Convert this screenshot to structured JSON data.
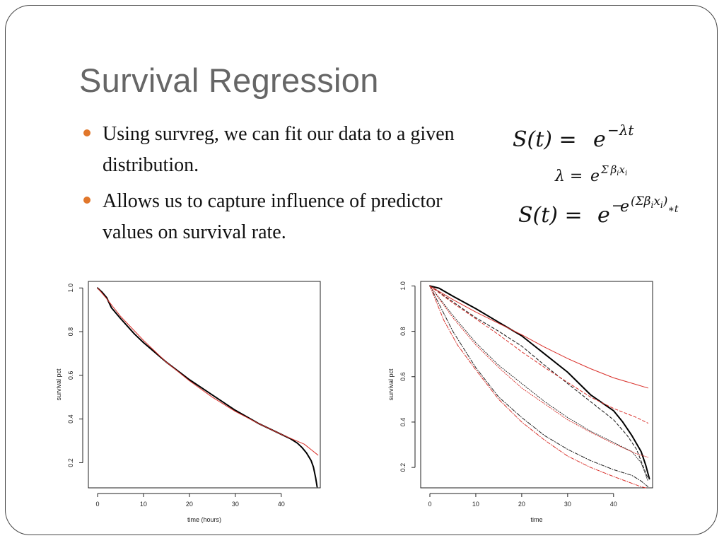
{
  "slide": {
    "title": "Survival Regression",
    "bullets": [
      "Using survreg, we can fit our data to a given distribution.",
      "Allows us to capture influence of predictor values on survival rate."
    ],
    "accent_color": "#e1772b",
    "formulas": {
      "f1_lhs": "S(t) =",
      "f1_base": "e",
      "f1_exp": "−λt",
      "f2_lhs": "λ =",
      "f2_base": "e",
      "f2_exp_sigma": "Σ",
      "f2_exp_beta": "β",
      "f2_exp_i1": "i",
      "f2_exp_x": "x",
      "f2_exp_i2": "i",
      "f3_lhs": "S(t) =",
      "f3_base": "e",
      "f3_minus": "−",
      "f3_inner_e": "e",
      "f3_inner_exp": "(Σβ",
      "f3_inner_i1": "i",
      "f3_inner_x": "x",
      "f3_inner_i2": "i",
      "f3_inner_close": ")",
      "f3_star_t": "∗t"
    }
  },
  "chart_data": [
    {
      "type": "line",
      "xlabel": "time (hours)",
      "ylabel": "survival pct",
      "xlim": [
        -2,
        48.5
      ],
      "ylim": [
        0.085,
        1.03
      ],
      "xticks": [
        0,
        10,
        20,
        30,
        40
      ],
      "yticks": [
        0.2,
        0.4,
        0.6,
        0.8,
        1.0
      ],
      "xtick_labels": [
        "0",
        "10",
        "20",
        "30",
        "40"
      ],
      "ytick_labels": [
        "0.2",
        "0.4",
        "0.6",
        "0.8",
        "1.0"
      ],
      "series": [
        {
          "color": "#000000",
          "width": 2.0,
          "dash": "",
          "x": [
            0,
            1,
            2,
            3,
            5,
            8,
            10,
            15,
            20,
            25,
            30,
            35,
            40,
            42,
            43.5,
            44.5,
            45.5,
            46.5,
            47,
            47.5,
            47.8
          ],
          "y": [
            1.0,
            0.98,
            0.955,
            0.91,
            0.86,
            0.79,
            0.75,
            0.66,
            0.58,
            0.51,
            0.44,
            0.38,
            0.33,
            0.31,
            0.29,
            0.27,
            0.245,
            0.21,
            0.18,
            0.13,
            0.09
          ]
        },
        {
          "color": "#d9302a",
          "width": 1.0,
          "dash": "",
          "x": [
            0,
            2,
            5,
            10,
            15,
            20,
            25,
            30,
            35,
            40,
            45,
            48
          ],
          "y": [
            1.0,
            0.95,
            0.87,
            0.76,
            0.66,
            0.575,
            0.5,
            0.435,
            0.38,
            0.33,
            0.285,
            0.235
          ]
        }
      ]
    },
    {
      "type": "line",
      "xlabel": "time",
      "ylabel": "survival pct",
      "xlim": [
        -2,
        48.5
      ],
      "ylim": [
        0.11,
        1.02
      ],
      "xticks": [
        0,
        10,
        20,
        30,
        40
      ],
      "yticks": [
        0.2,
        0.4,
        0.6,
        0.8,
        1.0
      ],
      "xtick_labels": [
        "0",
        "10",
        "20",
        "30",
        "40"
      ],
      "ytick_labels": [
        "0.2",
        "0.4",
        "0.6",
        "0.8",
        "1.0"
      ],
      "series": [
        {
          "color": "#000000",
          "width": 2.0,
          "dash": "",
          "x": [
            0,
            2,
            5,
            10,
            15,
            20,
            25,
            30,
            35,
            40,
            42,
            44,
            46,
            47,
            47.8
          ],
          "y": [
            1.0,
            0.99,
            0.955,
            0.9,
            0.84,
            0.78,
            0.7,
            0.62,
            0.52,
            0.45,
            0.4,
            0.34,
            0.27,
            0.21,
            0.15
          ]
        },
        {
          "color": "#d9302a",
          "width": 1.0,
          "dash": "",
          "x": [
            0,
            5,
            10,
            15,
            20,
            25,
            30,
            35,
            40,
            45,
            47.5
          ],
          "y": [
            1.0,
            0.94,
            0.885,
            0.835,
            0.785,
            0.73,
            0.68,
            0.635,
            0.595,
            0.565,
            0.55
          ]
        },
        {
          "color": "#222222",
          "width": 1.1,
          "dash": "4,3",
          "x": [
            0,
            5,
            10,
            15,
            20,
            25,
            30,
            35,
            40,
            43,
            45,
            47.5
          ],
          "y": [
            1.0,
            0.93,
            0.86,
            0.8,
            0.735,
            0.65,
            0.57,
            0.49,
            0.41,
            0.34,
            0.28,
            0.15
          ]
        },
        {
          "color": "#d9302a",
          "width": 1.0,
          "dash": "4,3",
          "x": [
            0,
            5,
            10,
            15,
            20,
            25,
            30,
            35,
            40,
            45,
            47.5
          ],
          "y": [
            1.0,
            0.925,
            0.855,
            0.785,
            0.71,
            0.64,
            0.575,
            0.51,
            0.46,
            0.42,
            0.395
          ]
        },
        {
          "color": "#222222",
          "width": 1.0,
          "dash": "1,2",
          "x": [
            0,
            5,
            10,
            15,
            20,
            25,
            30,
            35,
            40,
            44,
            46,
            47.5
          ],
          "y": [
            1.0,
            0.87,
            0.75,
            0.65,
            0.57,
            0.49,
            0.42,
            0.36,
            0.31,
            0.27,
            0.22,
            0.14
          ]
        },
        {
          "color": "#d9302a",
          "width": 1.0,
          "dash": "1,2",
          "x": [
            0,
            5,
            10,
            15,
            20,
            25,
            30,
            35,
            40,
            45,
            47.5
          ],
          "y": [
            1.0,
            0.86,
            0.74,
            0.64,
            0.55,
            0.48,
            0.41,
            0.355,
            0.305,
            0.26,
            0.245
          ]
        },
        {
          "color": "#222222",
          "width": 1.0,
          "dash": "5,2,1,2",
          "x": [
            0,
            5,
            10,
            15,
            20,
            25,
            30,
            35,
            40,
            44,
            46,
            47.5
          ],
          "y": [
            1.0,
            0.8,
            0.64,
            0.51,
            0.42,
            0.34,
            0.28,
            0.23,
            0.19,
            0.165,
            0.14,
            0.115
          ]
        },
        {
          "color": "#d9302a",
          "width": 1.0,
          "dash": "5,2,1,2",
          "x": [
            0,
            3,
            6,
            10,
            15,
            20,
            25,
            30,
            35,
            40,
            44,
            46,
            47
          ],
          "y": [
            1.0,
            0.85,
            0.74,
            0.63,
            0.5,
            0.4,
            0.32,
            0.25,
            0.2,
            0.16,
            0.13,
            0.115,
            0.11
          ]
        }
      ]
    }
  ]
}
